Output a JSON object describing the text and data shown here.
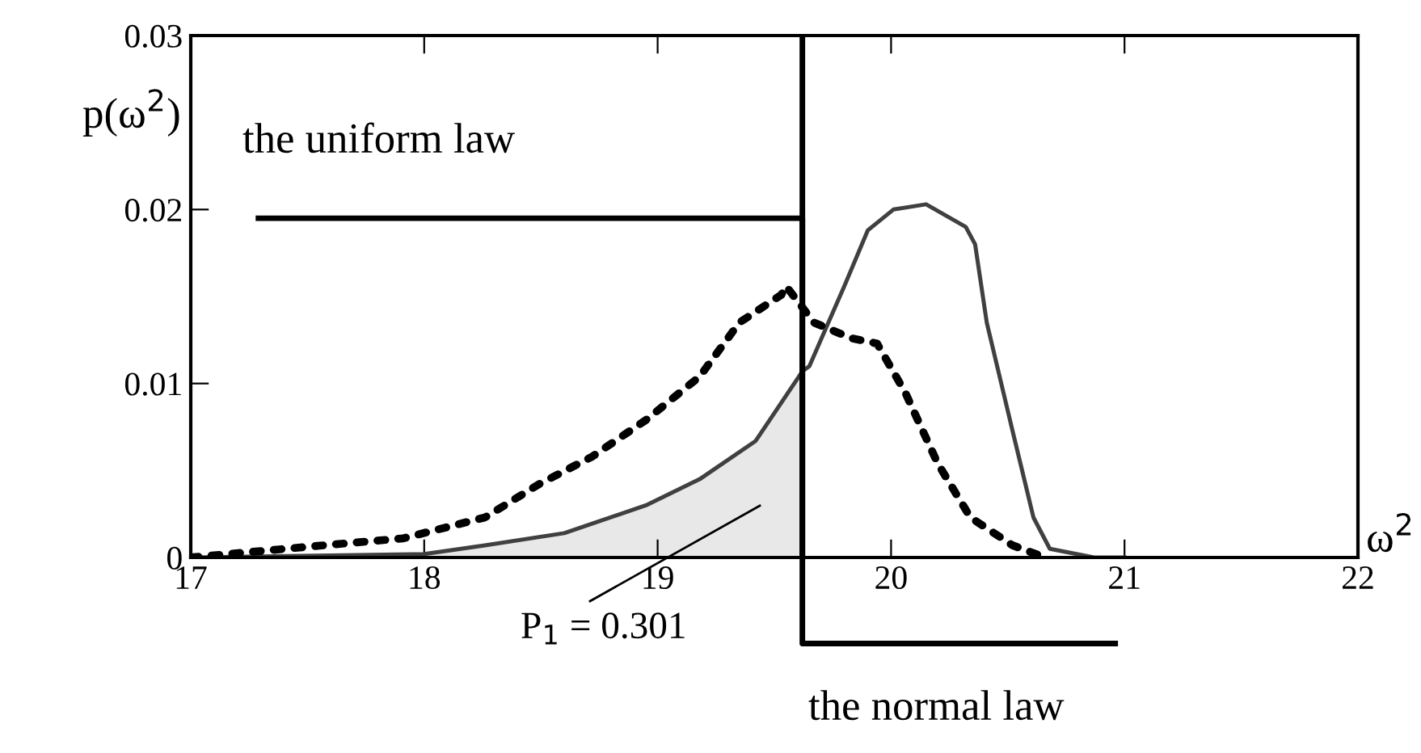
{
  "chart_data": {
    "type": "line",
    "xlabel": "ω$^{2}$",
    "ylabel": "p(ω$^{2}$)",
    "xlim": [
      17,
      22
    ],
    "xticks": [
      17,
      18,
      19,
      20,
      21,
      22
    ],
    "ylim": [
      0,
      0.03
    ],
    "yticks": [
      0,
      0.01,
      0.02,
      0.03
    ],
    "grid": false,
    "legend": false,
    "series": [
      {
        "type": "area",
        "color": "#e8e8e8",
        "x": [
          17,
          18,
          18.26,
          18.6,
          18.95,
          19.18,
          19.42,
          19.62
        ],
        "values": [
          0,
          0.0002,
          0.0007,
          0.0014,
          0.003,
          0.0045,
          0.0067,
          0.0107
        ]
      },
      {
        "color": "#404040",
        "line_style": "solid",
        "x": [
          17,
          18,
          18.26,
          18.6,
          18.95,
          19.18,
          19.42,
          19.62,
          19.65,
          19.8,
          19.9,
          20.01,
          20.15,
          20.32,
          20.36,
          20.41,
          20.52,
          20.61,
          20.68,
          20.87,
          21.0
        ],
        "values": [
          0,
          0.0002,
          0.0007,
          0.0014,
          0.003,
          0.0045,
          0.0067,
          0.0107,
          0.011,
          0.0156,
          0.0188,
          0.02,
          0.0203,
          0.019,
          0.018,
          0.0135,
          0.0073,
          0.0023,
          0.0005,
          0,
          0
        ]
      },
      {
        "color": "#000000",
        "line_style": "dotted",
        "x": [
          17,
          17.57,
          17.91,
          18.26,
          18.49,
          18.72,
          18.95,
          19.18,
          19.35,
          19.53,
          19.55,
          19.67,
          19.83,
          19.94,
          20.06,
          20.2,
          20.34,
          20.52,
          20.66
        ],
        "values": [
          0,
          0.0007,
          0.0011,
          0.0023,
          0.0042,
          0.0058,
          0.0079,
          0.0104,
          0.0135,
          0.0151,
          0.0156,
          0.0135,
          0.0126,
          0.0123,
          0.0095,
          0.0054,
          0.0023,
          0.0007,
          0
        ]
      }
    ],
    "ref_lines": [
      {
        "axis": "x",
        "value": 19.62,
        "color": "#000000"
      }
    ],
    "annotations": [
      "the uniform law",
      "the normal law",
      "P$_{1}$ = 0.301"
    ]
  }
}
